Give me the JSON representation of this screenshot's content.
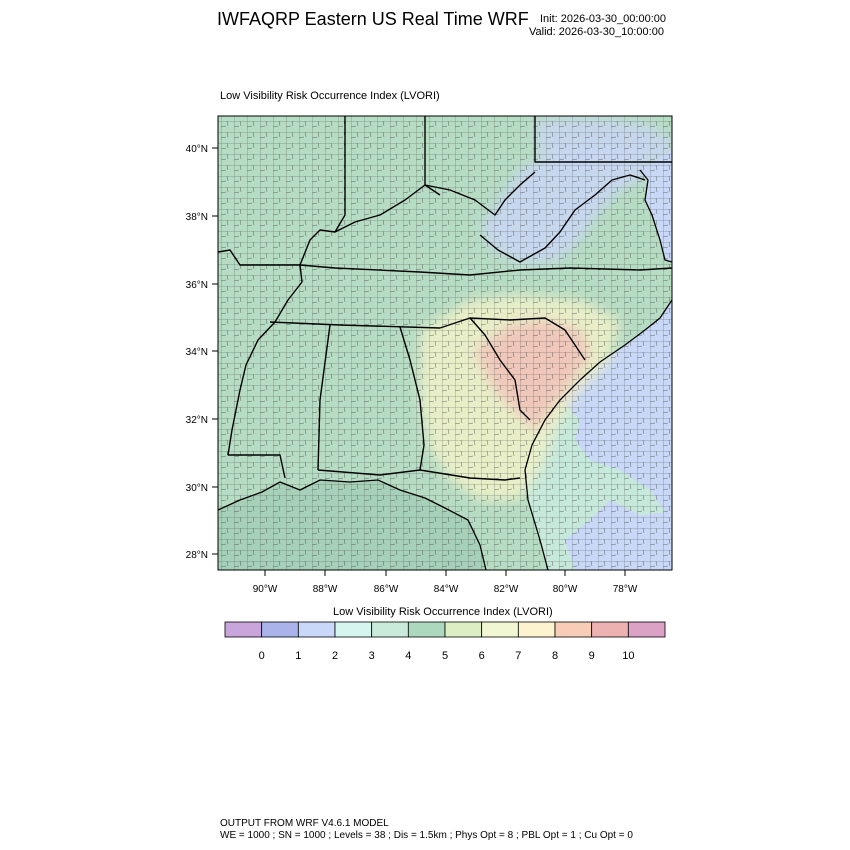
{
  "header": {
    "title": "IWFAQRP Eastern US Real Time WRF",
    "init": "Init: 2026-03-30_00:00:00",
    "valid": "Valid: 2026-03-30_10:00:00"
  },
  "panel": {
    "title": "Low Visibility Risk Occurrence Index   (LVORI)"
  },
  "map": {
    "lat_labels": [
      "40°N",
      "38°N",
      "36°N",
      "34°N",
      "32°N",
      "30°N",
      "28°N"
    ],
    "lon_labels": [
      "90°W",
      "88°W",
      "86°W",
      "84°W",
      "82°W",
      "80°W",
      "78°W"
    ],
    "colors": {
      "land_base": "#b7dcc4",
      "ocean": "#c8d8f6",
      "gulf": "#a6d1b8",
      "low_risk_blue": "#c9d7f3",
      "mid_yellow": "#eef1c9",
      "high_red": "#f1c2b9",
      "county_line": "#3b3b3b",
      "state_line": "#000000"
    }
  },
  "colorbar": {
    "title": "Low Visibility Risk Occurrence Index  (LVORI)",
    "colors": [
      "#c8a6dc",
      "#aab4ea",
      "#c9d7f8",
      "#d6f5ee",
      "#c8ecd9",
      "#acd8bd",
      "#dcefc4",
      "#f2f7d3",
      "#fdf3cf",
      "#f7cdb8",
      "#eeb1b1",
      "#dca2c6"
    ],
    "labels": [
      "0",
      "1",
      "2",
      "3",
      "4",
      "5",
      "6",
      "7",
      "8",
      "9",
      "10"
    ]
  },
  "footer": {
    "line1": "OUTPUT FROM WRF V4.6.1 MODEL",
    "line2": "WE = 1000 ; SN = 1000 ; Levels = 38 ; Dis = 1.5km ; Phys Opt = 8 ; PBL Opt = 1 ; Cu Opt = 0"
  }
}
